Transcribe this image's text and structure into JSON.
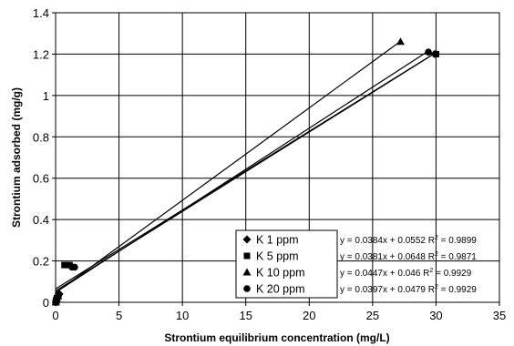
{
  "chart_data": {
    "type": "scatter",
    "xlabel": "Strontium equilibrium concentration (mg/L)",
    "ylabel": "Strontium adsorbed (mg/g)",
    "xlim": [
      0,
      35
    ],
    "ylim": [
      0,
      1.4
    ],
    "xticks": [
      0,
      5,
      10,
      15,
      20,
      25,
      30,
      35
    ],
    "yticks": [
      0,
      0.2,
      0.4,
      0.6,
      0.8,
      1,
      1.2,
      1.4
    ],
    "grid": true,
    "legend_position": "bottom-right",
    "series": [
      {
        "name": "K 1 ppm",
        "marker": "diamond",
        "points": [
          [
            0.02,
            0.0
          ],
          [
            0.05,
            0.01
          ],
          [
            0.1,
            0.02
          ],
          [
            0.2,
            0.03
          ],
          [
            0.3,
            0.04
          ],
          [
            29.9,
            1.2
          ]
        ],
        "trendline": {
          "slope": 0.0384,
          "intercept": 0.0552,
          "x_range": [
            0,
            29.9
          ]
        },
        "equation": "y = 0.0384x + 0.0552 R",
        "r2": "= 0.9899"
      },
      {
        "name": "K 5 ppm",
        "marker": "square",
        "points": [
          [
            0.02,
            0.0
          ],
          [
            0.05,
            0.01
          ],
          [
            0.1,
            0.02
          ],
          [
            0.2,
            0.03
          ],
          [
            0.7,
            0.18
          ],
          [
            1.1,
            0.18
          ],
          [
            30.0,
            1.2
          ]
        ],
        "trendline": {
          "slope": 0.0381,
          "intercept": 0.0648,
          "x_range": [
            0,
            30.0
          ]
        },
        "equation": "y = 0.0381x + 0.0648 R",
        "r2": "= 0.9871"
      },
      {
        "name": "K 10 ppm",
        "marker": "triangle",
        "points": [
          [
            0.02,
            0.0
          ],
          [
            0.05,
            0.01
          ],
          [
            0.1,
            0.02
          ],
          [
            0.2,
            0.03
          ],
          [
            27.2,
            1.26
          ]
        ],
        "trendline": {
          "slope": 0.0447,
          "intercept": 0.046,
          "x_range": [
            0,
            27.2
          ]
        },
        "equation": "y = 0.0447x + 0.046 R",
        "r2": "= 0.9929"
      },
      {
        "name": "K 20 ppm",
        "marker": "circle",
        "points": [
          [
            0.02,
            0.0
          ],
          [
            0.05,
            0.01
          ],
          [
            0.1,
            0.02
          ],
          [
            0.2,
            0.03
          ],
          [
            1.3,
            0.17
          ],
          [
            1.5,
            0.17
          ],
          [
            29.4,
            1.21
          ]
        ],
        "trendline": {
          "slope": 0.0397,
          "intercept": 0.0479,
          "x_range": [
            0,
            29.4
          ]
        },
        "equation": "y = 0.0397x + 0.0479 R",
        "r2": "= 0.9929"
      }
    ]
  }
}
